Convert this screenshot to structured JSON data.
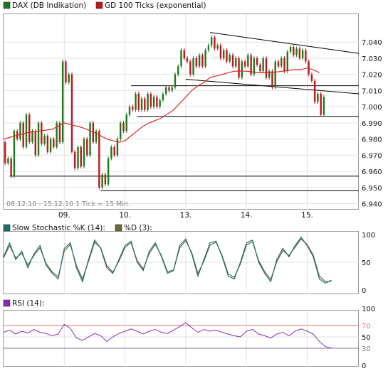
{
  "colors": {
    "price": "#1b7a1b",
    "price_down": "#c0151b",
    "ma": "#d42a22",
    "stoch_k": "#1c6f6f",
    "stoch_d": "#6b6b3a",
    "rsi": "#8a2bb0",
    "rsi_upper": "#e57373",
    "rsi_lower": "#7a7aa8",
    "grid": "#e2e2e2",
    "hline": "#000000"
  },
  "chart_data": [
    {
      "type": "candlestick",
      "legend": [
        {
          "label": "DAX (DB Indikation)",
          "color": "#1b7a1b"
        },
        {
          "label": "GD 100 Ticks (exponential)",
          "color": "#c0151b"
        }
      ],
      "period_label": "08.12.10 - 15.12.10  1 Tick = 15 Min.",
      "x_ticks": [
        {
          "label": "09.",
          "at": 10
        },
        {
          "label": "10.",
          "at": 20
        },
        {
          "label": "13.",
          "at": 30
        },
        {
          "label": "14.",
          "at": 40
        },
        {
          "label": "15.",
          "at": 50
        }
      ],
      "x_range": [
        0,
        58.5
      ],
      "ylim": [
        6940,
        7050
      ],
      "y_ticks": [
        "7.040",
        "7.030",
        "7.020",
        "7.010",
        "7.000",
        "6.990",
        "6.980",
        "6.970",
        "6.960",
        "6.950",
        "6.940"
      ],
      "y_tick_values": [
        7040,
        7030,
        7020,
        7010,
        7000,
        6990,
        6980,
        6970,
        6960,
        6950,
        6940
      ],
      "price_path": [
        [
          0,
          6978
        ],
        [
          0.5,
          6965
        ],
        [
          1,
          6968
        ],
        [
          1.5,
          6957
        ],
        [
          2,
          6985
        ],
        [
          2.5,
          6980
        ],
        [
          3,
          6990
        ],
        [
          3.5,
          6975
        ],
        [
          4,
          6995
        ],
        [
          4.5,
          6978
        ],
        [
          5,
          6985
        ],
        [
          5.5,
          6970
        ],
        [
          6,
          6990
        ],
        [
          6.5,
          6977
        ],
        [
          7,
          6982
        ],
        [
          7.5,
          6972
        ],
        [
          8,
          6980
        ],
        [
          8.5,
          6975
        ],
        [
          9,
          6990
        ],
        [
          9.5,
          6978
        ],
        [
          10,
          7028
        ],
        [
          10.5,
          7015
        ],
        [
          11,
          7020
        ],
        [
          11.5,
          6972
        ],
        [
          12,
          6962
        ],
        [
          12.5,
          6975
        ],
        [
          13,
          6963
        ],
        [
          13.5,
          6980
        ],
        [
          14,
          6970
        ],
        [
          14.5,
          6990
        ],
        [
          15,
          6978
        ],
        [
          15.5,
          6985
        ],
        [
          16,
          6950
        ],
        [
          16.5,
          6958
        ],
        [
          17,
          6952
        ],
        [
          17.5,
          6968
        ],
        [
          18,
          6975
        ],
        [
          18.5,
          6970
        ],
        [
          19,
          6980
        ],
        [
          19.5,
          6990
        ],
        [
          20,
          6985
        ],
        [
          20.5,
          6995
        ],
        [
          21,
          7000
        ],
        [
          21.5,
          6998
        ],
        [
          22,
          7008
        ],
        [
          22.5,
          6998
        ],
        [
          23,
          7005
        ],
        [
          23.5,
          6998
        ],
        [
          24,
          7008
        ],
        [
          24.5,
          7000
        ],
        [
          25,
          7006
        ],
        [
          25.5,
          7000
        ],
        [
          26,
          7004
        ],
        [
          26.5,
          7008
        ],
        [
          27,
          7012
        ],
        [
          27.5,
          7010
        ],
        [
          28,
          7012
        ],
        [
          28.5,
          7020
        ],
        [
          29,
          7025
        ],
        [
          29.5,
          7035
        ],
        [
          30,
          7030
        ],
        [
          30.5,
          7028
        ],
        [
          31,
          7020
        ],
        [
          31.5,
          7030
        ],
        [
          32,
          7025
        ],
        [
          32.5,
          7032
        ],
        [
          33,
          7025
        ],
        [
          33.5,
          7035
        ],
        [
          34,
          7038
        ],
        [
          34.5,
          7043
        ],
        [
          35,
          7036
        ],
        [
          35.5,
          7038
        ],
        [
          36,
          7030
        ],
        [
          36.5,
          7035
        ],
        [
          37,
          7028
        ],
        [
          37.5,
          7032
        ],
        [
          38,
          7025
        ],
        [
          38.5,
          7030
        ],
        [
          39,
          7018
        ],
        [
          39.5,
          7028
        ],
        [
          40,
          7025
        ],
        [
          40.5,
          7032
        ],
        [
          41,
          7020
        ],
        [
          41.5,
          7030
        ],
        [
          42,
          7026
        ],
        [
          42.5,
          7022
        ],
        [
          43,
          7030
        ],
        [
          43.5,
          7018
        ],
        [
          44,
          7022
        ],
        [
          44.5,
          7012
        ],
        [
          45,
          7028
        ],
        [
          45.5,
          7025
        ],
        [
          46,
          7030
        ],
        [
          46.5,
          7022
        ],
        [
          47,
          7034
        ],
        [
          47.5,
          7037
        ],
        [
          48,
          7032
        ],
        [
          48.5,
          7036
        ],
        [
          49,
          7030
        ],
        [
          49.5,
          7035
        ],
        [
          50,
          7028
        ],
        [
          50.5,
          7020
        ],
        [
          51,
          7016
        ],
        [
          51.5,
          7003
        ],
        [
          52,
          7008
        ],
        [
          52.5,
          6995
        ],
        [
          53,
          7006
        ]
      ],
      "ma_path": [
        [
          0,
          6980
        ],
        [
          2,
          6982
        ],
        [
          4,
          6984
        ],
        [
          6,
          6985
        ],
        [
          8,
          6986
        ],
        [
          9,
          6988
        ],
        [
          10,
          6990
        ],
        [
          11,
          6989
        ],
        [
          13,
          6987
        ],
        [
          15,
          6984
        ],
        [
          16,
          6982
        ],
        [
          17,
          6980
        ],
        [
          18,
          6979
        ],
        [
          19,
          6978
        ],
        [
          20,
          6979
        ],
        [
          21,
          6982
        ],
        [
          22,
          6985
        ],
        [
          23,
          6988
        ],
        [
          24,
          6990
        ],
        [
          26,
          6993
        ],
        [
          28,
          6998
        ],
        [
          29,
          7002
        ],
        [
          30,
          7006
        ],
        [
          31,
          7010
        ],
        [
          32,
          7013
        ],
        [
          33,
          7015
        ],
        [
          34,
          7018
        ],
        [
          36,
          7020
        ],
        [
          38,
          7022
        ],
        [
          40,
          7022
        ],
        [
          42,
          7021
        ],
        [
          44,
          7021
        ],
        [
          46,
          7022
        ],
        [
          48,
          7023
        ],
        [
          49,
          7023
        ],
        [
          50,
          7024
        ],
        [
          51,
          7023
        ],
        [
          52,
          7021
        ]
      ],
      "lines": [
        {
          "kind": "segment",
          "x1": 34,
          "y1": 7046,
          "x2": 58.5,
          "y2": 7033
        },
        {
          "kind": "segment",
          "x1": 30,
          "y1": 7017,
          "x2": 58.5,
          "y2": 7008
        },
        {
          "kind": "horizontal",
          "x_from": 21,
          "y": 7013
        },
        {
          "kind": "horizontal",
          "x_from": 22,
          "y": 6994
        },
        {
          "kind": "horizontal",
          "x_from": 1,
          "y": 6957
        },
        {
          "kind": "horizontal",
          "x_from": 16,
          "y": 6948
        }
      ]
    },
    {
      "type": "line",
      "series": [
        {
          "name": "Slow Stochastic %K (14):",
          "color": "#1c6f6f"
        },
        {
          "name": "%D (3):",
          "color": "#6b6b3a"
        }
      ],
      "x_range": [
        0,
        58.5
      ],
      "ylim": [
        0,
        100
      ],
      "y_ticks": [
        "100",
        "50",
        "0"
      ],
      "y_tick_values": [
        100,
        50,
        0
      ],
      "k_values": [
        [
          0,
          60
        ],
        [
          1,
          85
        ],
        [
          2,
          55
        ],
        [
          3,
          70
        ],
        [
          4,
          40
        ],
        [
          5,
          65
        ],
        [
          6,
          80
        ],
        [
          7,
          45
        ],
        [
          8,
          30
        ],
        [
          9,
          20
        ],
        [
          10,
          75
        ],
        [
          11,
          85
        ],
        [
          12,
          40
        ],
        [
          13,
          15
        ],
        [
          14,
          55
        ],
        [
          15,
          90
        ],
        [
          16,
          75
        ],
        [
          17,
          40
        ],
        [
          18,
          30
        ],
        [
          19,
          55
        ],
        [
          20,
          80
        ],
        [
          21,
          88
        ],
        [
          22,
          50
        ],
        [
          23,
          35
        ],
        [
          24,
          70
        ],
        [
          25,
          85
        ],
        [
          26,
          60
        ],
        [
          27,
          30
        ],
        [
          28,
          35
        ],
        [
          29,
          80
        ],
        [
          30,
          92
        ],
        [
          31,
          65
        ],
        [
          32,
          25
        ],
        [
          33,
          55
        ],
        [
          34,
          85
        ],
        [
          35,
          88
        ],
        [
          36,
          60
        ],
        [
          37,
          25
        ],
        [
          38,
          20
        ],
        [
          39,
          50
        ],
        [
          40,
          85
        ],
        [
          41,
          90
        ],
        [
          42,
          50
        ],
        [
          43,
          30
        ],
        [
          44,
          15
        ],
        [
          45,
          55
        ],
        [
          46,
          75
        ],
        [
          47,
          60
        ],
        [
          48,
          80
        ],
        [
          49,
          95
        ],
        [
          50,
          80
        ],
        [
          51,
          60
        ],
        [
          52,
          20
        ],
        [
          53,
          12
        ],
        [
          54,
          18
        ]
      ],
      "d_values": [
        [
          0,
          58
        ],
        [
          1,
          80
        ],
        [
          2,
          58
        ],
        [
          3,
          66
        ],
        [
          4,
          45
        ],
        [
          5,
          62
        ],
        [
          6,
          76
        ],
        [
          7,
          48
        ],
        [
          8,
          33
        ],
        [
          9,
          24
        ],
        [
          10,
          70
        ],
        [
          11,
          82
        ],
        [
          12,
          44
        ],
        [
          13,
          20
        ],
        [
          14,
          52
        ],
        [
          15,
          86
        ],
        [
          16,
          76
        ],
        [
          17,
          44
        ],
        [
          18,
          32
        ],
        [
          19,
          52
        ],
        [
          20,
          77
        ],
        [
          21,
          85
        ],
        [
          22,
          53
        ],
        [
          23,
          38
        ],
        [
          24,
          66
        ],
        [
          25,
          82
        ],
        [
          26,
          62
        ],
        [
          27,
          33
        ],
        [
          28,
          36
        ],
        [
          29,
          76
        ],
        [
          30,
          89
        ],
        [
          31,
          67
        ],
        [
          32,
          30
        ],
        [
          33,
          52
        ],
        [
          34,
          81
        ],
        [
          35,
          86
        ],
        [
          36,
          62
        ],
        [
          37,
          29
        ],
        [
          38,
          23
        ],
        [
          39,
          47
        ],
        [
          40,
          81
        ],
        [
          41,
          87
        ],
        [
          42,
          53
        ],
        [
          43,
          33
        ],
        [
          44,
          19
        ],
        [
          45,
          51
        ],
        [
          46,
          71
        ],
        [
          47,
          62
        ],
        [
          48,
          77
        ],
        [
          49,
          92
        ],
        [
          50,
          82
        ],
        [
          51,
          63
        ],
        [
          52,
          25
        ],
        [
          53,
          15
        ],
        [
          54,
          16
        ]
      ]
    },
    {
      "type": "line",
      "series": [
        {
          "name": "RSI (14):",
          "color": "#8a2bb0"
        }
      ],
      "x_range": [
        0,
        58.5
      ],
      "ylim": [
        0,
        100
      ],
      "y_ticks": [
        "100",
        "70",
        "50",
        "30",
        "0"
      ],
      "y_tick_values": [
        100,
        70,
        50,
        30,
        0
      ],
      "levels": [
        70,
        30
      ],
      "values": [
        [
          0,
          58
        ],
        [
          1,
          62
        ],
        [
          2,
          55
        ],
        [
          3,
          60
        ],
        [
          4,
          57
        ],
        [
          5,
          63
        ],
        [
          6,
          58
        ],
        [
          7,
          56
        ],
        [
          8,
          52
        ],
        [
          9,
          55
        ],
        [
          10,
          72
        ],
        [
          11,
          65
        ],
        [
          12,
          48
        ],
        [
          13,
          44
        ],
        [
          14,
          50
        ],
        [
          15,
          56
        ],
        [
          16,
          52
        ],
        [
          17,
          42
        ],
        [
          18,
          50
        ],
        [
          19,
          56
        ],
        [
          20,
          60
        ],
        [
          21,
          64
        ],
        [
          22,
          60
        ],
        [
          23,
          55
        ],
        [
          24,
          60
        ],
        [
          25,
          63
        ],
        [
          26,
          58
        ],
        [
          27,
          56
        ],
        [
          28,
          62
        ],
        [
          29,
          68
        ],
        [
          30,
          75
        ],
        [
          31,
          66
        ],
        [
          32,
          58
        ],
        [
          33,
          63
        ],
        [
          34,
          60
        ],
        [
          35,
          62
        ],
        [
          36,
          58
        ],
        [
          37,
          55
        ],
        [
          38,
          52
        ],
        [
          39,
          50
        ],
        [
          40,
          60
        ],
        [
          41,
          63
        ],
        [
          42,
          55
        ],
        [
          43,
          52
        ],
        [
          44,
          48
        ],
        [
          45,
          55
        ],
        [
          46,
          58
        ],
        [
          47,
          52
        ],
        [
          48,
          60
        ],
        [
          49,
          64
        ],
        [
          50,
          60
        ],
        [
          51,
          55
        ],
        [
          52,
          42
        ],
        [
          53,
          33
        ],
        [
          54,
          30
        ]
      ]
    }
  ]
}
